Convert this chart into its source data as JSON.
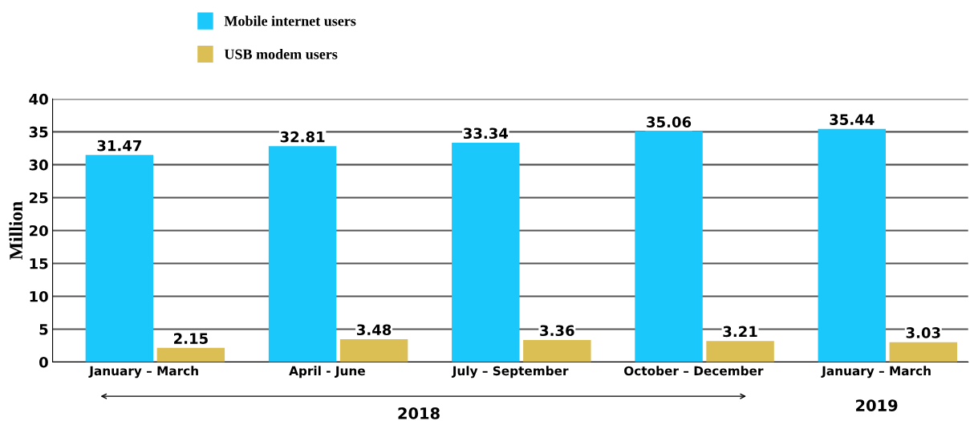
{
  "chart_data": {
    "type": "bar",
    "ylabel": "Million",
    "categories": [
      "January – March",
      "April - June",
      "July – September",
      "October – December",
      "January – March"
    ],
    "series": [
      {
        "name": "Mobile internet users",
        "color": "#1ac8fc",
        "values": [
          31.47,
          32.81,
          33.34,
          35.06,
          35.44
        ]
      },
      {
        "name": "USB modem users",
        "color": "#dbbf54",
        "values": [
          2.15,
          3.48,
          3.36,
          3.21,
          3.03
        ]
      }
    ],
    "ylim": [
      0,
      40
    ],
    "yticks": [
      0,
      5,
      10,
      15,
      20,
      25,
      30,
      35,
      40
    ],
    "grid": "y",
    "legend": "top left",
    "data_labels": true,
    "annotations": [
      "2018",
      "2019"
    ]
  }
}
